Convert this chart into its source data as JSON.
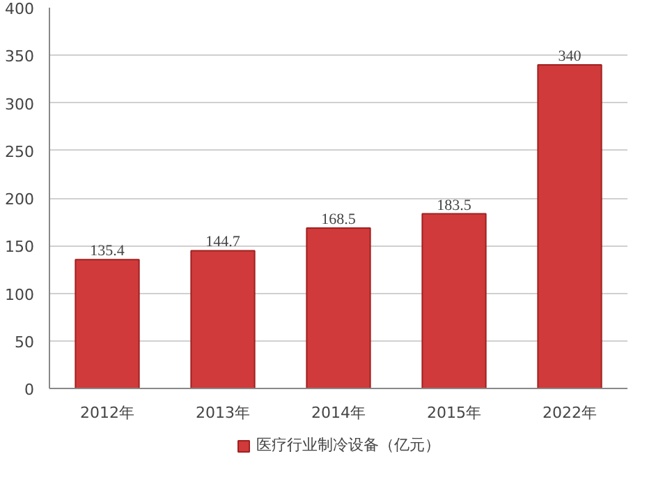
{
  "chart_data": {
    "type": "bar",
    "categories": [
      "2012年",
      "2013年",
      "2014年",
      "2015年",
      "2022年"
    ],
    "series": [
      {
        "name": "医疗行业制冷设备（亿元）",
        "color": "#d03a3a",
        "values": [
          135.4,
          144.7,
          168.5,
          183.5,
          340
        ]
      }
    ],
    "ylim": [
      0,
      400
    ],
    "yticks": [
      0,
      50,
      100,
      150,
      200,
      250,
      300,
      350,
      400
    ],
    "grid": "y",
    "legend": "bottom",
    "data_labels": true
  }
}
